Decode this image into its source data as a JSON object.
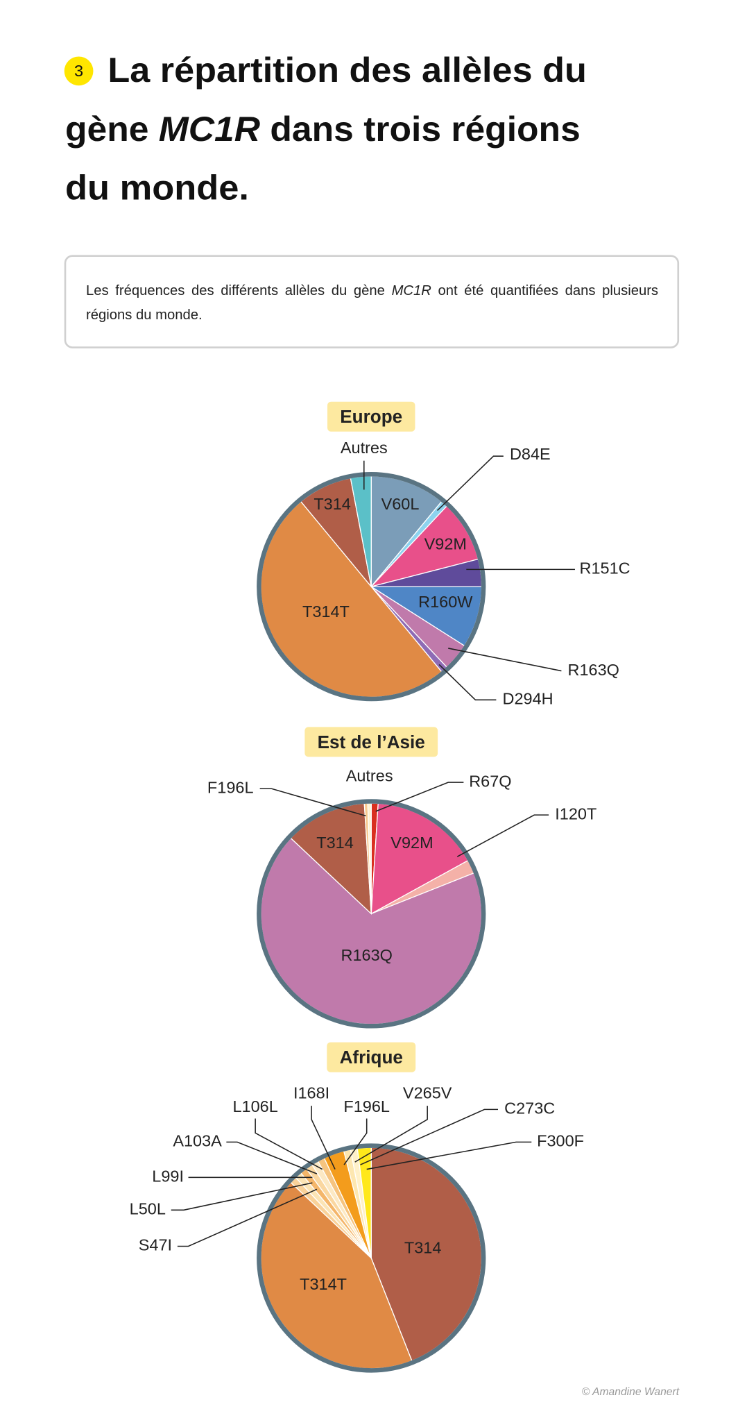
{
  "header": {
    "number": "3",
    "title_lines": [
      [
        "La répartition des allèles du"
      ],
      [
        "gène ",
        "MC1R",
        " dans trois régions"
      ],
      [
        "du monde."
      ]
    ]
  },
  "intro": {
    "parts": [
      "Les fréquences des différents allèles du gène ",
      "MC1R",
      " ont été quantifiées dans plusieurs régions du monde."
    ]
  },
  "chart_data": [
    {
      "type": "pie",
      "title": "Europe",
      "categories": [
        "V60L",
        "D84E",
        "V92M",
        "R151C",
        "R160W",
        "R163Q",
        "D294H",
        "T314T",
        "T314",
        "Autres"
      ],
      "values": [
        11,
        1,
        9,
        4,
        9,
        4,
        1,
        50,
        8,
        3
      ],
      "colors": [
        "#7b9db8",
        "#8dd3ef",
        "#e8508a",
        "#5f4b9b",
        "#4f86c6",
        "#c07aab",
        "#8e6bb5",
        "#e08a45",
        "#b05e48",
        "#5bc0c8"
      ]
    },
    {
      "type": "pie",
      "title": "Est de l’Asie",
      "categories": [
        "R67Q",
        "V92M",
        "I120T",
        "R163Q",
        "T314",
        "F196L",
        "Autres"
      ],
      "values": [
        1,
        16,
        2,
        68,
        12,
        0.5,
        0.5
      ],
      "colors": [
        "#d9301f",
        "#e8508a",
        "#f4b1a8",
        "#c07aab",
        "#b05e48",
        "#f7c98e",
        "#fdf2d0"
      ]
    },
    {
      "type": "pie",
      "title": "Afrique",
      "categories": [
        "T314",
        "T314T",
        "S47I",
        "L50L",
        "L99I",
        "A103A",
        "L106L",
        "I168I",
        "F196L",
        "V265V",
        "C273C",
        "F300F"
      ],
      "values": [
        44,
        43,
        1,
        1,
        1,
        1,
        1,
        1,
        3,
        1,
        1,
        2
      ],
      "colors": [
        "#b05e48",
        "#e08a45",
        "#f9d29a",
        "#fbe4b5",
        "#f4b66a",
        "#fad7a0",
        "#fce9c4",
        "#f6c47f",
        "#f39c1c",
        "#fde7b0",
        "#fff1c9",
        "#ffe81a"
      ]
    }
  ],
  "credit": "© Amandine Wanert"
}
